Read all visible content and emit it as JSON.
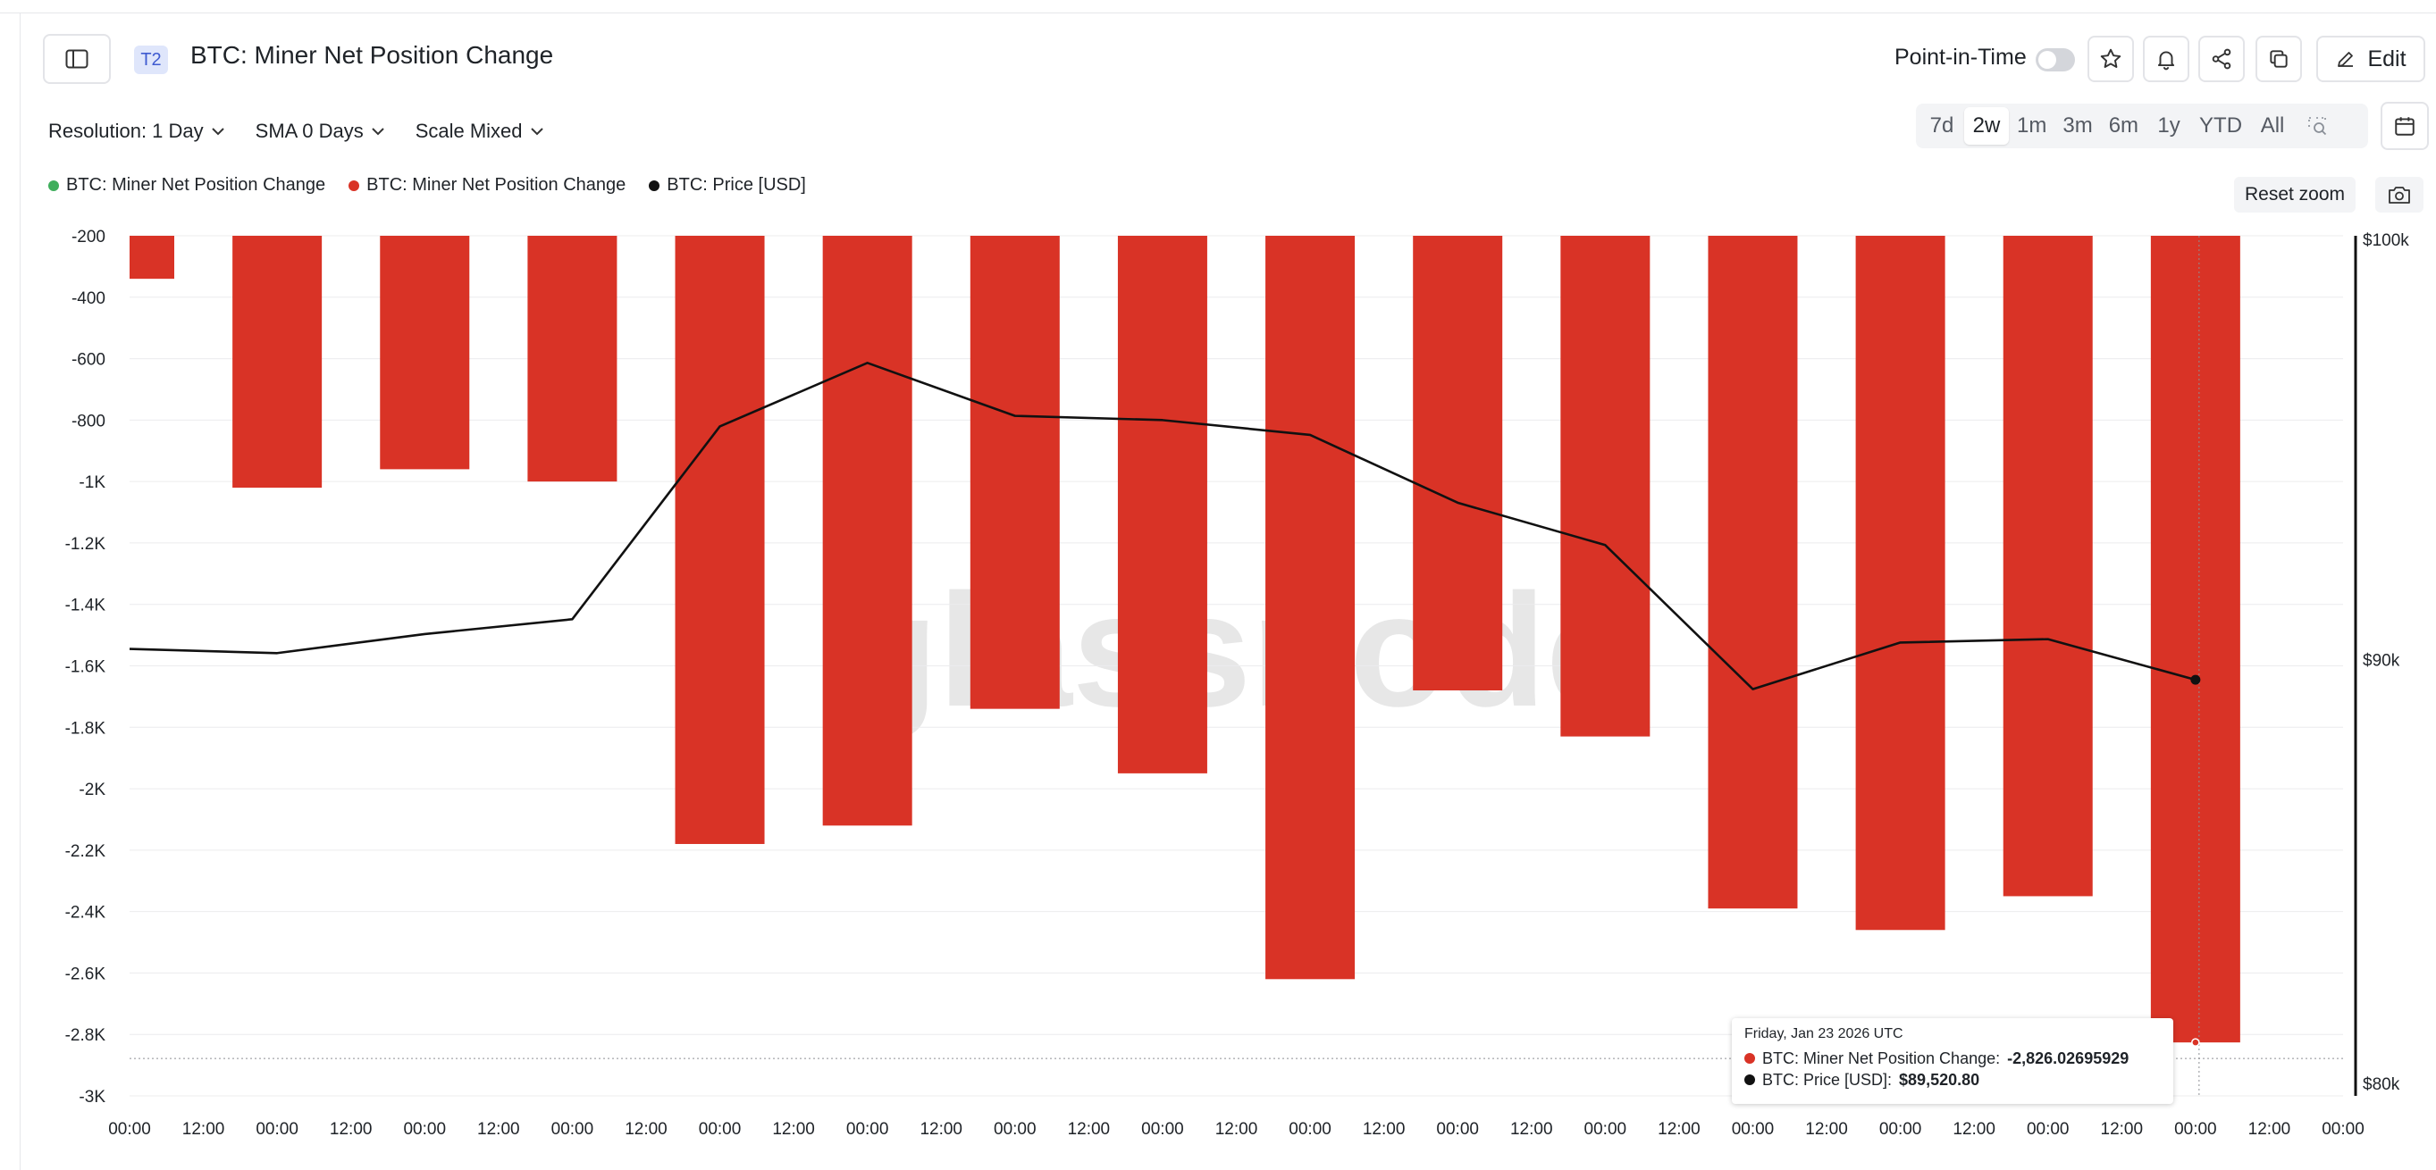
{
  "header": {
    "badge": "T2",
    "title": "BTC: Miner Net Position Change",
    "point_in_time_label": "Point-in-Time",
    "edit_label": "Edit"
  },
  "controls": {
    "resolution": "Resolution: 1 Day",
    "sma": "SMA 0 Days",
    "scale": "Scale Mixed"
  },
  "ranges": [
    "7d",
    "2w",
    "1m",
    "3m",
    "6m",
    "1y",
    "YTD",
    "All"
  ],
  "active_range": "2w",
  "legend": [
    {
      "label": "BTC: Miner Net Position Change",
      "color": "#3fae5c"
    },
    {
      "label": "BTC: Miner Net Position Change",
      "color": "#d93326"
    },
    {
      "label": "BTC: Price [USD]",
      "color": "#111111"
    }
  ],
  "reset_zoom": "Reset zoom",
  "watermark": "glassnode",
  "tooltip": {
    "date": "Friday, Jan 23 2026 UTC",
    "rows": [
      {
        "label": "BTC: Miner Net Position Change: ",
        "value": "-2,826.02695929",
        "color": "#d93326"
      },
      {
        "label": "BTC: Price [USD]: ",
        "value": "$89,520.80",
        "color": "#111111"
      }
    ]
  },
  "colors": {
    "bar": "#d93326",
    "line": "#111111",
    "grid": "#ececee"
  },
  "chart_data": {
    "type": "bar",
    "title": "BTC: Miner Net Position Change",
    "x_tick_labels": [
      "00:00",
      "12:00",
      "00:00",
      "12:00",
      "00:00",
      "12:00",
      "00:00",
      "12:00",
      "00:00",
      "12:00",
      "00:00",
      "12:00",
      "00:00",
      "12:00",
      "00:00",
      "12:00",
      "00:00",
      "12:00",
      "00:00",
      "12:00",
      "00:00",
      "12:00",
      "00:00",
      "12:00",
      "00:00",
      "12:00",
      "00:00",
      "12:00",
      "00:00",
      "12:00",
      "00:00"
    ],
    "y_left": {
      "ticks": [
        -200,
        -400,
        -600,
        -800,
        -1000,
        -1200,
        -1400,
        -1600,
        -1800,
        -2000,
        -2200,
        -2400,
        -2600,
        -2800,
        -3000
      ],
      "tick_labels": [
        "-200",
        "-400",
        "-600",
        "-800",
        "-1K",
        "-1.2K",
        "-1.4K",
        "-1.6K",
        "-1.8K",
        "-2K",
        "-2.2K",
        "-2.4K",
        "-2.6K",
        "-2.8K",
        "-3K"
      ],
      "range": [
        -3000,
        -200
      ]
    },
    "y_right": {
      "ticks": [
        80000,
        90000,
        100000
      ],
      "tick_labels": [
        "$80k",
        "$90k",
        "$100k"
      ],
      "range": [
        79700,
        100000
      ]
    },
    "series": [
      {
        "name": "BTC: Miner Net Position Change",
        "type": "bar",
        "axis": "left",
        "x_index": [
          0,
          2,
          4,
          6,
          8,
          10,
          12,
          14,
          16,
          18,
          20,
          22,
          24,
          26,
          28
        ],
        "values": [
          -340,
          -1020,
          -960,
          -1000,
          -2180,
          -2120,
          -1740,
          -1950,
          -2620,
          -1680,
          -1830,
          -2390,
          -2460,
          -2350,
          -2826.02695929
        ]
      },
      {
        "name": "BTC: Price [USD]",
        "type": "line",
        "axis": "right",
        "x_index": [
          0,
          2,
          4,
          6,
          8,
          10,
          12,
          14,
          16,
          18,
          20,
          22,
          24,
          26,
          28
        ],
        "values": [
          90250,
          90150,
          90600,
          90950,
          95500,
          97000,
          95750,
          95650,
          95300,
          93700,
          92700,
          89300,
          90400,
          90480,
          89520.8
        ]
      }
    ],
    "highlight_index": 28
  }
}
